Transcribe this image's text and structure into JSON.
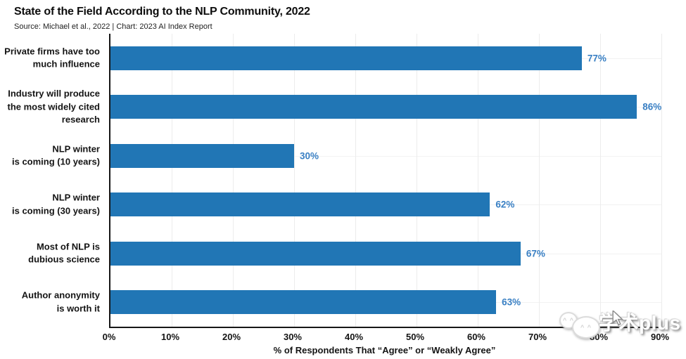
{
  "header": {
    "title": "State of the Field According to the NLP Community, 2022",
    "source": "Source: Michael et al., 2022 | Chart: 2023 AI Index Report"
  },
  "chart_data": {
    "type": "bar",
    "orientation": "horizontal",
    "title": "State of the Field According to the NLP Community, 2022",
    "categories": [
      "Private firms have too\nmuch influence",
      "Industry will produce\nthe most widely cited\nresearch",
      "NLP winter\nis coming (10 years)",
      "NLP winter\nis coming (30 years)",
      "Most of NLP is\ndubious science",
      "Author anonymity\nis worth it"
    ],
    "values": [
      77,
      86,
      30,
      62,
      67,
      63
    ],
    "value_labels": [
      "77%",
      "86%",
      "30%",
      "62%",
      "67%",
      "63%"
    ],
    "xlabel": "% of Respondents That “Agree” or “Weakly Agree”",
    "xlim": [
      0,
      90
    ],
    "xtick_labels": [
      "0%",
      "10%",
      "20%",
      "30%",
      "40%",
      "50%",
      "60%",
      "70%",
      "80%",
      "90%"
    ],
    "xtick_values": [
      0,
      10,
      20,
      30,
      40,
      50,
      60,
      70,
      80,
      90
    ],
    "grid": true,
    "legend": "none",
    "bar_color": "#2176B5",
    "value_label_color": "#3A80C4",
    "axis_color": "#161616"
  },
  "watermark": {
    "text": "学术plus",
    "bubble_eyes": "^ ^"
  }
}
